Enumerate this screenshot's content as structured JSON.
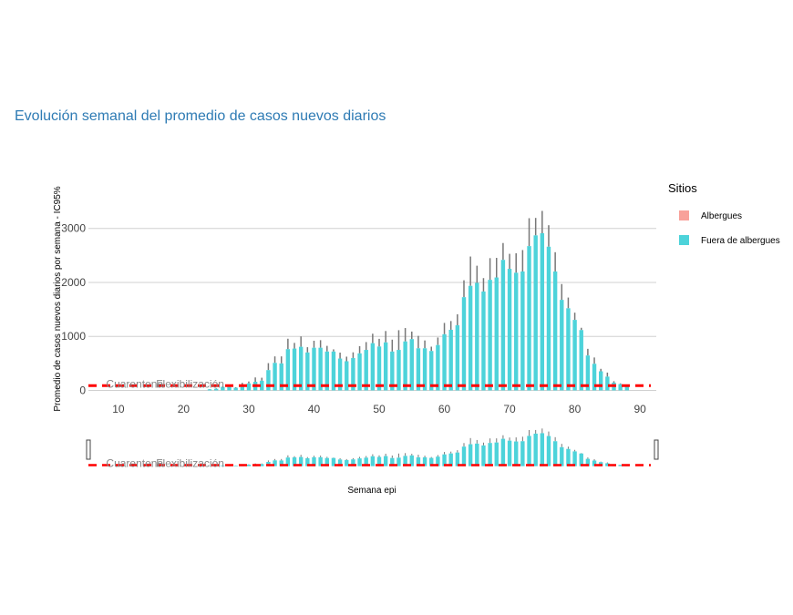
{
  "chart_data": {
    "type": "bar",
    "title": "Evolución semanal del promedio de casos nuevos diarios",
    "xlabel": "Semana epi",
    "ylabel": "Promedio de casos nuevos diarios por semana - IC95%",
    "xlim": [
      5.4,
      92.5
    ],
    "ylim": [
      -110,
      3350
    ],
    "xticks": [
      10,
      20,
      30,
      40,
      50,
      60,
      70,
      80,
      90
    ],
    "yticks": [
      0,
      1000,
      2000,
      3000
    ],
    "grid": true,
    "legend": {
      "title": "Sitios",
      "placement": "right",
      "entries": [
        {
          "name": "Albergues",
          "color": "#f8a19a"
        },
        {
          "name": "Fuera de albergues",
          "color": "#4dd3da"
        }
      ]
    },
    "series": [
      {
        "name": "Fuera de albergues",
        "color": "#4dd3da",
        "x": [
          24,
          25,
          26,
          27,
          28,
          29,
          30,
          31,
          32,
          33,
          34,
          35,
          36,
          37,
          38,
          39,
          40,
          41,
          42,
          43,
          44,
          45,
          46,
          47,
          48,
          49,
          50,
          51,
          52,
          53,
          54,
          55,
          56,
          57,
          58,
          59,
          60,
          61,
          62,
          63,
          64,
          65,
          66,
          67,
          68,
          69,
          70,
          71,
          72,
          73,
          74,
          75,
          76,
          77,
          78,
          79,
          80,
          81,
          82,
          83,
          84,
          85,
          86,
          87,
          88
        ],
        "values": [
          20,
          30,
          65,
          65,
          50,
          100,
          130,
          160,
          180,
          376,
          510,
          500,
          764,
          775,
          808,
          703,
          790,
          790,
          720,
          720,
          590,
          540,
          600,
          686,
          750,
          875,
          813,
          890,
          720,
          750,
          907,
          950,
          780,
          780,
          730,
          840,
          1040,
          1123,
          1206,
          1727,
          1937,
          1992,
          1832,
          2048,
          2092,
          2418,
          2252,
          2180,
          2203,
          2673,
          2872,
          2911,
          2662,
          2203,
          1677,
          1522,
          1306,
          1118,
          647,
          493,
          354,
          255,
          144,
          116,
          77
        ],
        "upper": [
          25,
          40,
          75,
          75,
          60,
          140,
          165,
          240,
          235,
          505,
          630,
          630,
          957,
          880,
          1000,
          800,
          920,
          930,
          825,
          760,
          700,
          625,
          705,
          820,
          895,
          1050,
          955,
          1100,
          940,
          1115,
          1155,
          1090,
          1010,
          925,
          810,
          980,
          1250,
          1285,
          1410,
          2040,
          2480,
          2310,
          2080,
          2450,
          2455,
          2730,
          2530,
          2540,
          2600,
          3190,
          3195,
          3325,
          3060,
          2560,
          1970,
          1720,
          1440,
          1160,
          770,
          610,
          400,
          330,
          170,
          130,
          80
        ]
      },
      {
        "name": "Albergues",
        "color": "#f8a19a",
        "x": [],
        "values": []
      }
    ],
    "reference_line": {
      "y": 88,
      "color": "#ff0000",
      "style": "dashed"
    },
    "annotations": [
      {
        "text": "Cuarentena",
        "x": 12.5
      },
      {
        "text": "Flexibilización",
        "x": 21
      }
    ],
    "range_slider": true
  }
}
